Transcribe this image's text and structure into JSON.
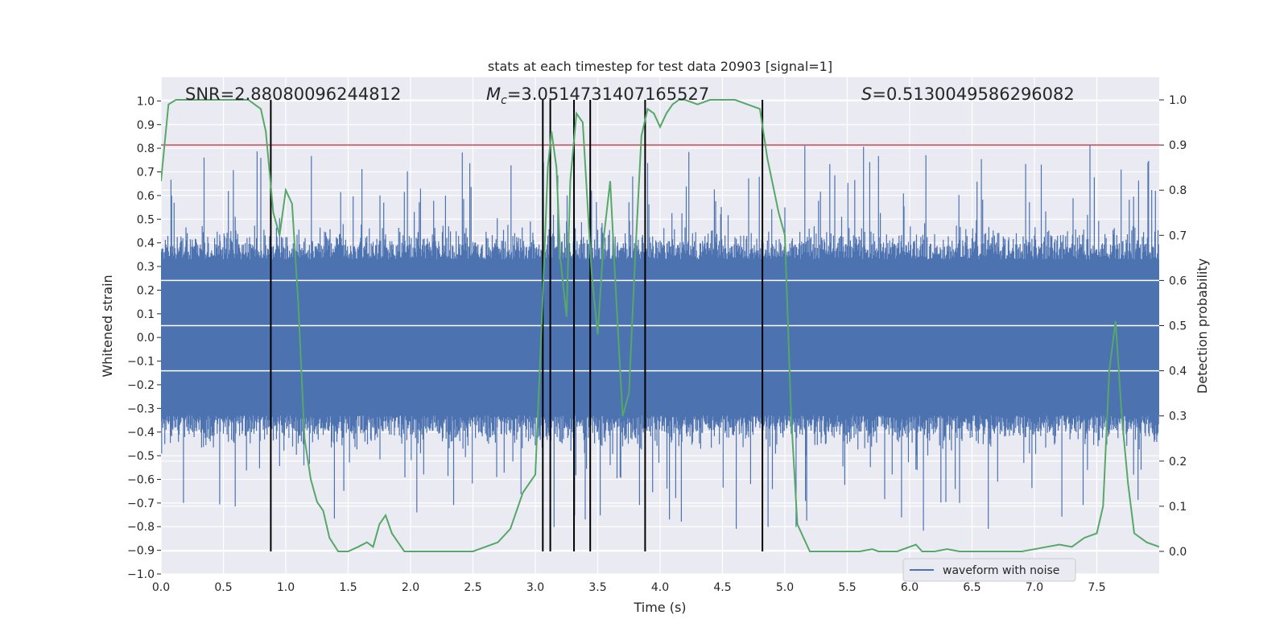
{
  "chart_data": {
    "type": "line",
    "title": "stats at each timestep for test data 20903 [signal=1]",
    "xlabel": "Time (s)",
    "ylabel_left": "Whitened strain",
    "ylabel_right": "Detection probability",
    "xlim": [
      0.0,
      8.0
    ],
    "ylim_left": [
      -1.0,
      1.1
    ],
    "ylim_right": [
      -0.05,
      1.05
    ],
    "x_ticks": [
      "0.0",
      "0.5",
      "1.0",
      "1.5",
      "2.0",
      "2.5",
      "3.0",
      "3.5",
      "4.0",
      "4.5",
      "5.0",
      "5.5",
      "6.0",
      "6.5",
      "7.0",
      "7.5"
    ],
    "y_ticks_left": [
      "1.0",
      "0.9",
      "0.8",
      "0.7",
      "0.6",
      "0.5",
      "0.4",
      "0.3",
      "0.2",
      "0.1",
      "0.0",
      "−0.1",
      "−0.2",
      "−0.3",
      "−0.4",
      "−0.5",
      "−0.6",
      "−0.7",
      "−0.8",
      "−0.9",
      "−1.0"
    ],
    "y_ticks_right": [
      "1.0",
      "0.9",
      "0.8",
      "0.7",
      "0.6",
      "0.5",
      "0.4",
      "0.3",
      "0.2",
      "0.1",
      "0.0"
    ],
    "grid": true,
    "annotations": {
      "snr": "SNR=2.88080096244812",
      "mc_symbol": "M",
      "mc_sub": "c",
      "mc_value": "=3.0514731407165527",
      "s_symbol": "S",
      "s_value": "=0.5130049586296082"
    },
    "legend": {
      "position": "lower-right",
      "label": "waveform with noise"
    },
    "threshold_prob": 0.9,
    "vertical_lines_x": [
      0.88,
      3.06,
      3.12,
      3.31,
      3.44,
      3.88,
      4.82
    ],
    "series": [
      {
        "name": "waveform with noise",
        "axis": "left",
        "color": "#4c72b0",
        "style": "noise-spikes",
        "core_amplitude": 0.33,
        "envelope": [
          0.05,
          0.5
        ]
      },
      {
        "name": "detection probability",
        "axis": "right",
        "color": "#55a868",
        "x": [
          0.0,
          0.06,
          0.12,
          0.2,
          0.3,
          0.4,
          0.5,
          0.6,
          0.7,
          0.8,
          0.84,
          0.9,
          0.95,
          1.0,
          1.05,
          1.1,
          1.15,
          1.2,
          1.25,
          1.3,
          1.35,
          1.42,
          1.5,
          1.58,
          1.65,
          1.7,
          1.75,
          1.8,
          1.85,
          1.9,
          1.95,
          2.0,
          2.1,
          2.2,
          2.3,
          2.4,
          2.5,
          2.6,
          2.7,
          2.8,
          2.9,
          3.0,
          3.05,
          3.1,
          3.13,
          3.17,
          3.2,
          3.25,
          3.28,
          3.33,
          3.38,
          3.45,
          3.5,
          3.55,
          3.6,
          3.65,
          3.7,
          3.75,
          3.8,
          3.85,
          3.9,
          3.95,
          4.0,
          4.05,
          4.1,
          4.15,
          4.2,
          4.3,
          4.4,
          4.5,
          4.6,
          4.7,
          4.8,
          4.86,
          4.95,
          5.0,
          5.05,
          5.1,
          5.2,
          5.3,
          5.4,
          5.5,
          5.6,
          5.7,
          5.75,
          5.8,
          5.9,
          6.0,
          6.05,
          6.1,
          6.2,
          6.3,
          6.4,
          6.5,
          6.6,
          6.7,
          6.8,
          6.9,
          7.0,
          7.1,
          7.2,
          7.3,
          7.4,
          7.5,
          7.55,
          7.6,
          7.65,
          7.7,
          7.75,
          7.8,
          7.9,
          8.0
        ],
        "values": [
          0.82,
          0.99,
          1.0,
          1.0,
          1.0,
          1.0,
          1.0,
          1.0,
          1.0,
          0.98,
          0.93,
          0.75,
          0.7,
          0.8,
          0.77,
          0.55,
          0.25,
          0.16,
          0.11,
          0.09,
          0.03,
          0.0,
          0.0,
          0.01,
          0.02,
          0.01,
          0.06,
          0.08,
          0.04,
          0.02,
          0.0,
          0.0,
          0.0,
          0.0,
          0.0,
          0.0,
          0.0,
          0.01,
          0.02,
          0.05,
          0.13,
          0.17,
          0.5,
          0.85,
          0.93,
          0.85,
          0.65,
          0.52,
          0.82,
          0.97,
          0.95,
          0.62,
          0.48,
          0.7,
          0.82,
          0.55,
          0.3,
          0.35,
          0.65,
          0.92,
          0.98,
          0.97,
          0.94,
          0.97,
          0.99,
          1.0,
          1.0,
          0.99,
          1.0,
          1.0,
          1.0,
          0.99,
          0.98,
          0.87,
          0.75,
          0.7,
          0.3,
          0.06,
          0.0,
          0.0,
          0.0,
          0.0,
          0.0,
          0.005,
          0.0,
          0.0,
          0.0,
          0.01,
          0.015,
          0.0,
          0.0,
          0.005,
          0.0,
          0.0,
          0.0,
          0.0,
          0.0,
          0.0,
          0.005,
          0.01,
          0.015,
          0.01,
          0.03,
          0.04,
          0.1,
          0.4,
          0.51,
          0.3,
          0.15,
          0.04,
          0.02,
          0.01
        ]
      }
    ]
  }
}
